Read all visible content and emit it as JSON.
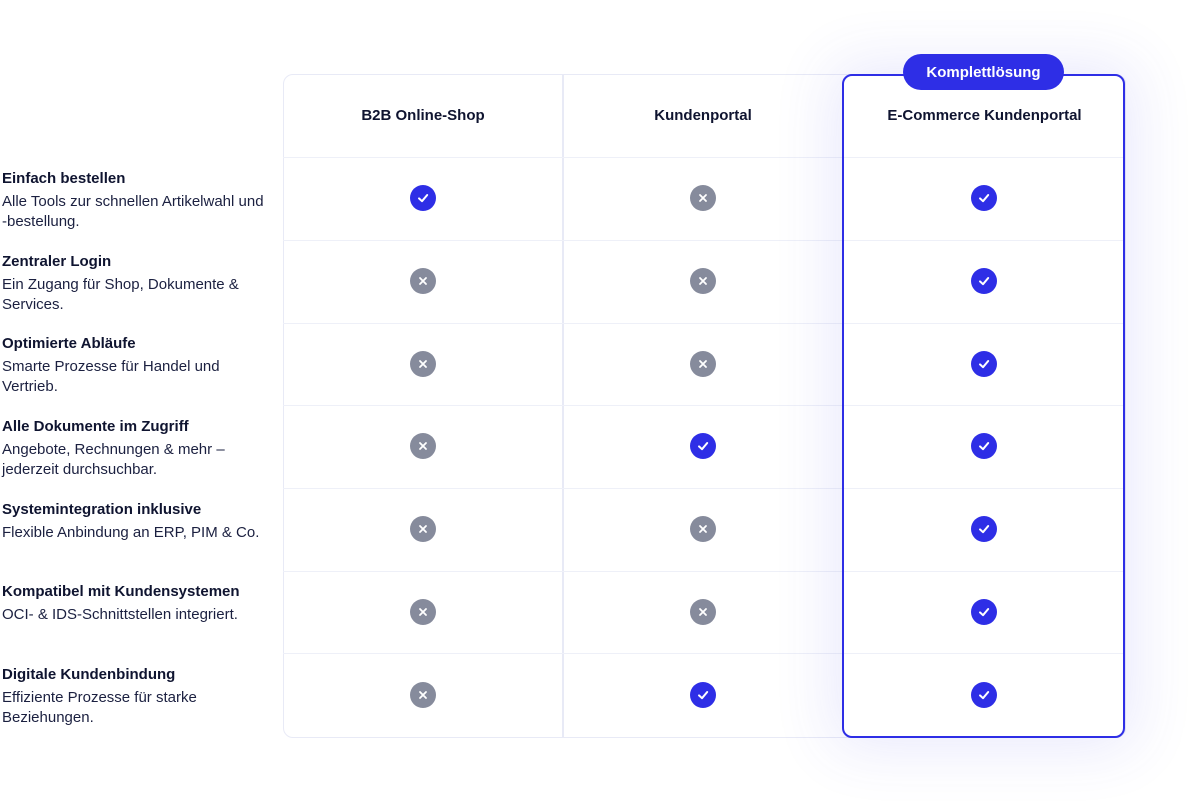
{
  "badge": "Komplettlösung",
  "columns": [
    {
      "name": "B2B Online-Shop"
    },
    {
      "name": "Kundenportal"
    },
    {
      "name": "E-Commerce Kundenportal"
    }
  ],
  "features": [
    {
      "title": "Einfach bestellen",
      "desc": "Alle Tools zur schnellen Artikelwahl und -bestellung.",
      "values": [
        true,
        false,
        true
      ]
    },
    {
      "title": "Zentraler Login",
      "desc": "Ein Zugang für Shop, Dokumente & Services.",
      "values": [
        false,
        false,
        true
      ]
    },
    {
      "title": "Optimierte Abläufe",
      "desc": "Smarte Prozesse für Handel und Vertrieb.",
      "values": [
        false,
        false,
        true
      ]
    },
    {
      "title": "Alle Dokumente im Zugriff",
      "desc": "Angebote, Rechnungen & mehr – jederzeit durchsuchbar.",
      "values": [
        false,
        true,
        true
      ]
    },
    {
      "title": "Systemintegration inklusive",
      "desc": "Flexible Anbindung an ERP, PIM & Co.",
      "values": [
        false,
        false,
        true
      ]
    },
    {
      "title": "Kompatibel mit Kundensystemen",
      "desc": "OCI- & IDS-Schnittstellen integriert.",
      "values": [
        false,
        false,
        true
      ]
    },
    {
      "title": "Digitale Kundenbindung",
      "desc": "Effiziente Prozesse für starke Beziehungen.",
      "values": [
        false,
        true,
        true
      ]
    }
  ],
  "colors": {
    "accent": "#2e2ee6",
    "negative": "#868b9c",
    "border": "#e8eaf6"
  },
  "icons": {
    "included": "check-circle-icon",
    "excluded": "x-circle-icon"
  }
}
